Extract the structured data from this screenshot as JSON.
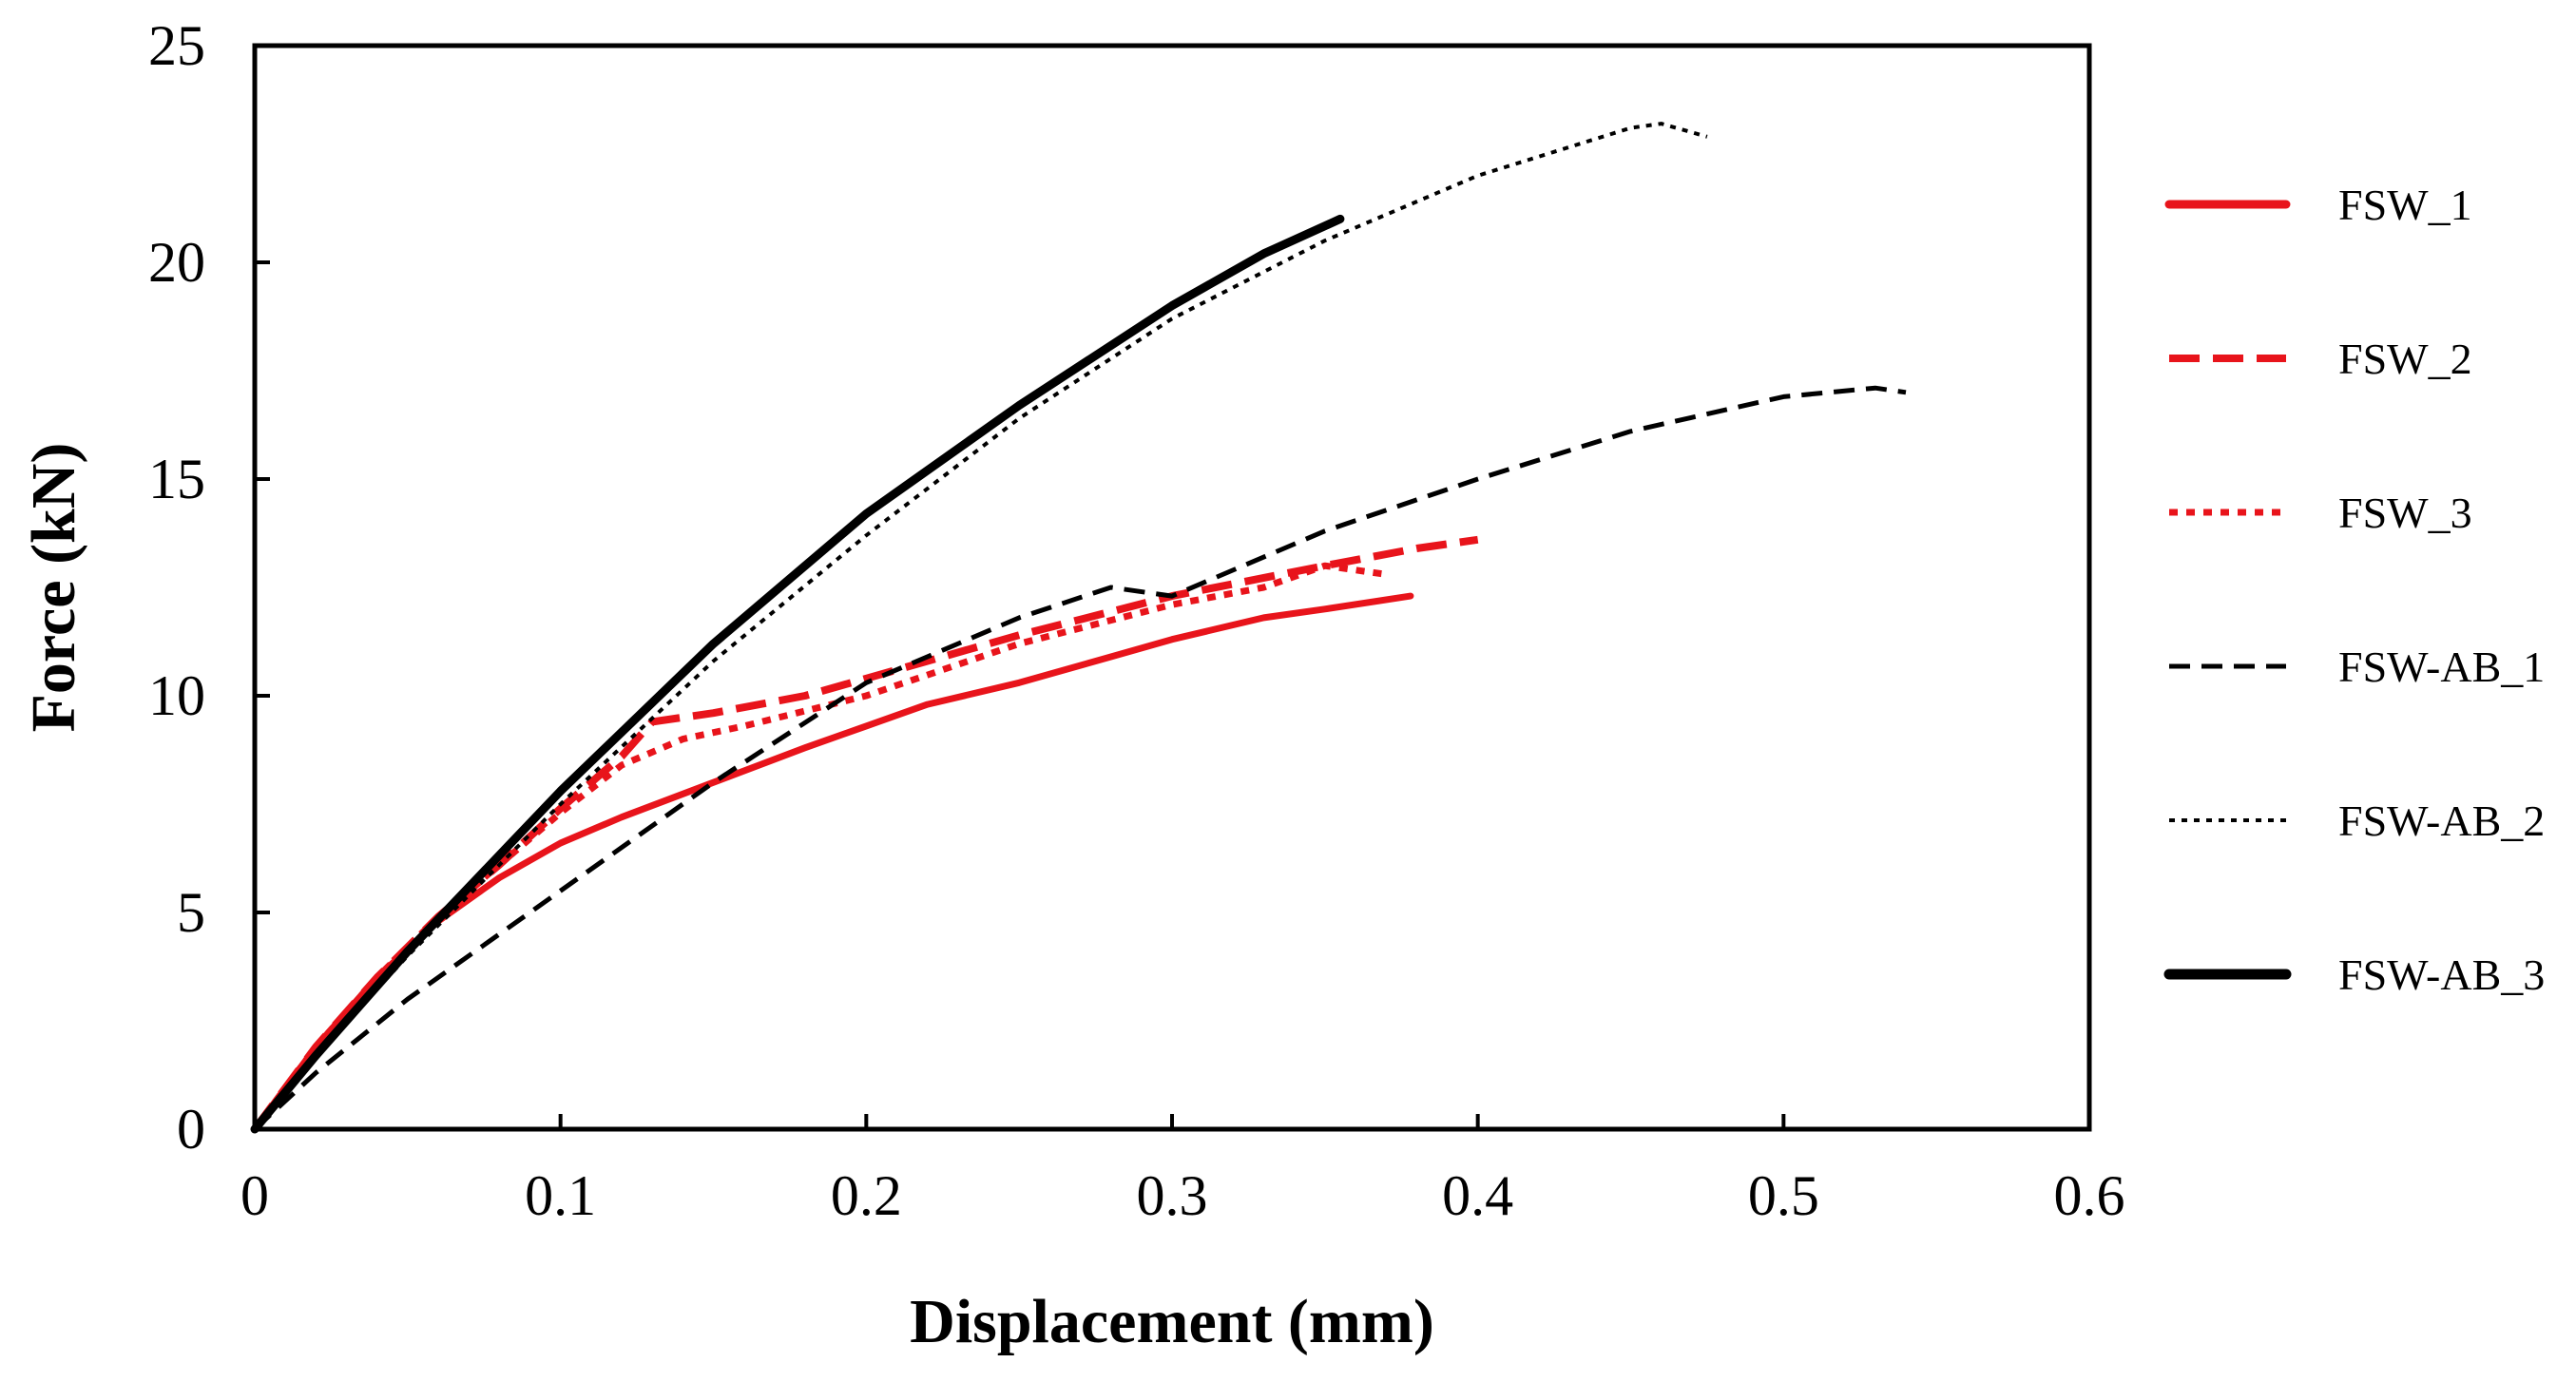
{
  "chart_data": {
    "type": "line",
    "title": "",
    "xlabel": "Displacement (mm)",
    "ylabel": "Force (kN)",
    "xlim": [
      0,
      0.6
    ],
    "ylim": [
      0,
      25
    ],
    "xticks": [
      0,
      0.1,
      0.2,
      0.3,
      0.4,
      0.5,
      0.6
    ],
    "xtick_labels": [
      "0",
      "0.1",
      "0.2",
      "0.3",
      "0.4",
      "0.5",
      "0.6"
    ],
    "yticks": [
      0,
      5,
      10,
      15,
      20,
      25
    ],
    "ytick_labels": [
      "0",
      "5",
      "10",
      "15",
      "20",
      "25"
    ],
    "grid": false,
    "legend_position": "right",
    "series": [
      {
        "name": "FSW_1",
        "color": "#e8141b",
        "style": "solid",
        "x": [
          0,
          0.02,
          0.04,
          0.06,
          0.08,
          0.1,
          0.12,
          0.15,
          0.18,
          0.2,
          0.22,
          0.25,
          0.28,
          0.3,
          0.33,
          0.35,
          0.378
        ],
        "y": [
          0,
          1.9,
          3.5,
          4.8,
          5.8,
          6.6,
          7.2,
          8.0,
          8.8,
          9.3,
          9.8,
          10.3,
          10.9,
          11.3,
          11.8,
          12.0,
          12.3
        ]
      },
      {
        "name": "FSW_2",
        "color": "#e8141b",
        "style": "dashed",
        "x": [
          0,
          0.02,
          0.04,
          0.06,
          0.08,
          0.1,
          0.12,
          0.13,
          0.15,
          0.18,
          0.2,
          0.25,
          0.3,
          0.35,
          0.38,
          0.4
        ],
        "y": [
          0,
          1.9,
          3.5,
          4.9,
          6.1,
          7.4,
          8.6,
          9.4,
          9.6,
          10.0,
          10.4,
          11.4,
          12.3,
          13.0,
          13.4,
          13.6
        ]
      },
      {
        "name": "FSW_3",
        "color": "#e8141b",
        "style": "dotted",
        "x": [
          0,
          0.02,
          0.04,
          0.06,
          0.08,
          0.1,
          0.12,
          0.14,
          0.16,
          0.2,
          0.25,
          0.3,
          0.33,
          0.35,
          0.37
        ],
        "y": [
          0,
          1.9,
          3.5,
          4.9,
          6.1,
          7.3,
          8.4,
          9.0,
          9.3,
          10.0,
          11.2,
          12.1,
          12.5,
          13.0,
          12.8
        ]
      },
      {
        "name": "FSW-AB_1",
        "color": "#000000",
        "style": "dashed",
        "x": [
          0,
          0.02,
          0.05,
          0.1,
          0.15,
          0.2,
          0.25,
          0.28,
          0.3,
          0.35,
          0.4,
          0.45,
          0.5,
          0.53,
          0.54
        ],
        "y": [
          0,
          1.3,
          3.0,
          5.5,
          8.0,
          10.3,
          11.8,
          12.5,
          12.3,
          13.8,
          15.0,
          16.1,
          16.9,
          17.1,
          17.0
        ]
      },
      {
        "name": "FSW-AB_2",
        "color": "#000000",
        "style": "dotted",
        "x": [
          0,
          0.02,
          0.05,
          0.1,
          0.15,
          0.2,
          0.25,
          0.3,
          0.35,
          0.4,
          0.45,
          0.46,
          0.475
        ],
        "y": [
          0,
          1.7,
          4.0,
          7.5,
          10.8,
          13.7,
          16.4,
          18.7,
          20.5,
          22.0,
          23.1,
          23.2,
          22.9
        ]
      },
      {
        "name": "FSW-AB_3",
        "color": "#000000",
        "style": "solid",
        "x": [
          0,
          0.02,
          0.05,
          0.1,
          0.15,
          0.2,
          0.25,
          0.3,
          0.33,
          0.355
        ],
        "y": [
          0,
          1.7,
          4.1,
          7.8,
          11.2,
          14.2,
          16.7,
          19.0,
          20.2,
          21.0
        ]
      }
    ]
  }
}
